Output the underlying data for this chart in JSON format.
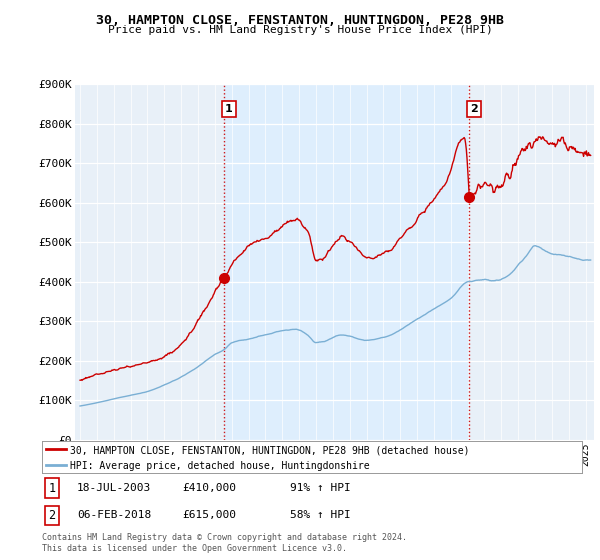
{
  "title_line1": "30, HAMPTON CLOSE, FENSTANTON, HUNTINGDON, PE28 9HB",
  "title_line2": "Price paid vs. HM Land Registry's House Price Index (HPI)",
  "ylim": [
    0,
    900000
  ],
  "yticks": [
    0,
    100000,
    200000,
    300000,
    400000,
    500000,
    600000,
    700000,
    800000,
    900000
  ],
  "ytick_labels": [
    "£0",
    "£100K",
    "£200K",
    "£300K",
    "£400K",
    "£500K",
    "£600K",
    "£700K",
    "£800K",
    "£900K"
  ],
  "xlim_start": 1994.7,
  "xlim_end": 2025.5,
  "transaction1_date": 2003.54,
  "transaction1_price": 410000,
  "transaction1_label": "1",
  "transaction2_date": 2018.09,
  "transaction2_price": 615000,
  "transaction2_label": "2",
  "line1_color": "#cc0000",
  "line2_color": "#7aafd4",
  "shade_color": "#ddeeff",
  "line1_label": "30, HAMPTON CLOSE, FENSTANTON, HUNTINGDON, PE28 9HB (detached house)",
  "line2_label": "HPI: Average price, detached house, Huntingdonshire",
  "legend_entry1_date": "18-JUL-2003",
  "legend_entry1_price": "£410,000",
  "legend_entry1_hpi": "91% ↑ HPI",
  "legend_entry2_date": "06-FEB-2018",
  "legend_entry2_price": "£615,000",
  "legend_entry2_hpi": "58% ↑ HPI",
  "footnote": "Contains HM Land Registry data © Crown copyright and database right 2024.\nThis data is licensed under the Open Government Licence v3.0.",
  "bg_color": "#ffffff",
  "plot_bg_color": "#e8f0f8"
}
